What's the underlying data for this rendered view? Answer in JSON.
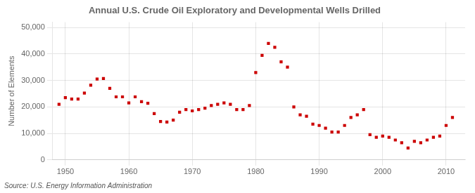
{
  "chart_data": {
    "type": "scatter",
    "title": "Annual U.S. Crude Oil Exploratory and Developmental Wells Drilled",
    "y_label": "Number of Elements",
    "source": "Source: U.S. Energy Information Administration",
    "color": "#cc0000",
    "marker": "square",
    "grid": true,
    "xlim": [
      1948,
      2013
    ],
    "xticks": [
      1950,
      1960,
      1970,
      1980,
      1990,
      2000,
      2010
    ],
    "ylim": [
      0,
      52000
    ],
    "yticks": [
      0,
      {
        "value": 10000,
        "label": "10,000"
      },
      {
        "value": 20000,
        "label": "20,000"
      },
      {
        "value": 30000,
        "label": "30,000"
      },
      {
        "value": 40000,
        "label": "40,000"
      },
      {
        "value": 50000,
        "label": "50,000"
      }
    ],
    "x": [
      1949,
      1950,
      1951,
      1952,
      1953,
      1954,
      1955,
      1956,
      1957,
      1958,
      1959,
      1960,
      1961,
      1962,
      1963,
      1964,
      1965,
      1966,
      1967,
      1968,
      1969,
      1970,
      1971,
      1972,
      1973,
      1974,
      1975,
      1976,
      1977,
      1978,
      1979,
      1980,
      1981,
      1982,
      1983,
      1984,
      1985,
      1986,
      1987,
      1988,
      1989,
      1990,
      1991,
      1992,
      1993,
      1994,
      1995,
      1996,
      1997,
      1998,
      1999,
      2000,
      2001,
      2002,
      2003,
      2004,
      2005,
      2006,
      2007,
      2008,
      2009,
      2010,
      2011
    ],
    "values": [
      21000,
      23500,
      23000,
      23000,
      25200,
      28200,
      30500,
      30700,
      27000,
      23800,
      23800,
      21500,
      23800,
      22000,
      21400,
      17500,
      14500,
      14300,
      15000,
      18000,
      19000,
      18500,
      19000,
      19500,
      20500,
      21000,
      21500,
      21000,
      19000,
      19000,
      20500,
      33000,
      39500,
      44000,
      42500,
      37000,
      35000,
      20000,
      17000,
      16500,
      13500,
      13000,
      12000,
      10500,
      10500,
      13000,
      16000,
      17000,
      19000,
      9500,
      8500,
      9000,
      8500,
      7500,
      6500,
      4500,
      7000,
      6500,
      7500,
      8500,
      9000,
      13000,
      16000
    ]
  }
}
